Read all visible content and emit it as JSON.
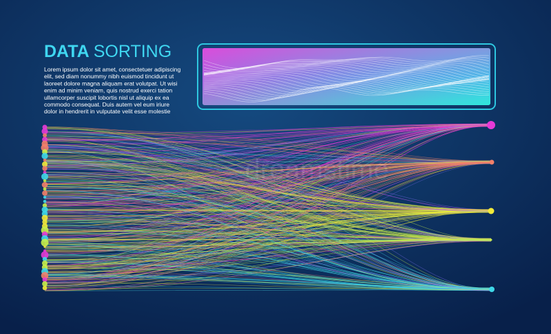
{
  "header": {
    "title_bold": "DATA",
    "title_light": "SORTING"
  },
  "paragraph": {
    "lines": [
      "Lorem ipsum dolor sit amet, consectetuer adipiscing",
      "elit, sed diam nonummy nibh euismod tincidunt ut",
      "laoreet dolore magna aliquam erat volutpat. Ut wisi",
      "enim ad minim veniam, quis nostrud exerci tation",
      "ullamcorper suscipit lobortis nisl ut aliquip ex ea",
      "commodo consequat. Duis autem vel eum iriure",
      "dolor in hendrerit in vulputate velit esse molestie"
    ]
  },
  "watermark": "dreamstime"
}
